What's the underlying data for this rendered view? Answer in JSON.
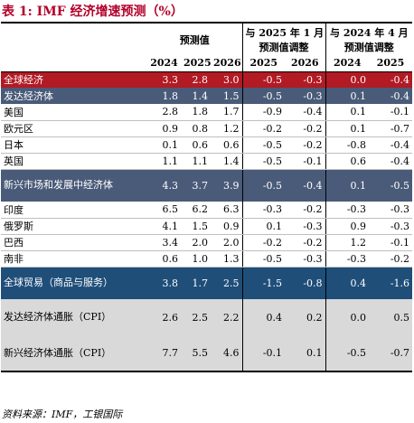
{
  "title": "表 1: IMF 经济增速预测（%）",
  "header": {
    "group1": "预测值",
    "group2_line1": "与 2025 年 1 月",
    "group2_line2": "预测值调整",
    "group3_line1": "与 2024 年 4 月",
    "group3_line2": "预测值调整",
    "years": [
      "2024",
      "2025",
      "2026",
      "2025",
      "2026",
      "2024",
      "2025"
    ]
  },
  "rows": [
    {
      "label": "全球经济",
      "values": [
        "3.3",
        "2.8",
        "3.0",
        "-0.5",
        "-0.3",
        "0.0",
        "-0.4"
      ]
    },
    {
      "label": "发达经济体",
      "values": [
        "1.8",
        "1.4",
        "1.5",
        "-0.5",
        "-0.3",
        "0.1",
        "-0.4"
      ]
    },
    {
      "label": "美国",
      "values": [
        "2.8",
        "1.8",
        "1.7",
        "-0.9",
        "-0.4",
        "0.1",
        "-0.1"
      ]
    },
    {
      "label": "欧元区",
      "values": [
        "0.9",
        "0.8",
        "1.2",
        "-0.2",
        "-0.2",
        "0.1",
        "-0.7"
      ]
    },
    {
      "label": "日本",
      "values": [
        "0.1",
        "0.6",
        "0.6",
        "-0.5",
        "-0.2",
        "-0.8",
        "-0.4"
      ]
    },
    {
      "label": "英国",
      "values": [
        "1.1",
        "1.1",
        "1.4",
        "-0.5",
        "-0.1",
        "0.6",
        "-0.4"
      ]
    },
    {
      "label": "新兴市场和发展中经济体",
      "values": [
        "4.3",
        "3.7",
        "3.9",
        "-0.5",
        "-0.4",
        "0.1",
        "-0.5"
      ]
    },
    {
      "label": "印度",
      "values": [
        "6.5",
        "6.2",
        "6.3",
        "-0.3",
        "-0.2",
        "-0.3",
        "-0.3"
      ]
    },
    {
      "label": "俄罗斯",
      "values": [
        "4.1",
        "1.5",
        "0.9",
        "0.1",
        "-0.3",
        "0.9",
        "-0.3"
      ]
    },
    {
      "label": "巴西",
      "values": [
        "3.4",
        "2.0",
        "2.0",
        "-0.2",
        "-0.2",
        "1.2",
        "-0.1"
      ]
    },
    {
      "label": "南非",
      "values": [
        "0.6",
        "1.0",
        "1.3",
        "-0.5",
        "-0.3",
        "-0.3",
        "-0.2"
      ]
    },
    {
      "label": "全球贸易（商品与服务）",
      "values": [
        "3.8",
        "1.7",
        "2.5",
        "-1.5",
        "-0.8",
        "0.4",
        "-1.6"
      ]
    },
    {
      "label": "发达经济体通胀（CPI）",
      "values": [
        "2.6",
        "2.5",
        "2.2",
        "0.4",
        "0.2",
        "0.0",
        "0.5"
      ]
    },
    {
      "label": "新兴经济体通胀（CPI）",
      "values": [
        "7.7",
        "5.5",
        "4.6",
        "-0.1",
        "0.1",
        "-0.5",
        "-0.7"
      ]
    }
  ],
  "source": "资料来源：IMF，工银国际",
  "colors": {
    "title": "#b3002a",
    "red_row": "#b21a24",
    "dark_row": "#4a5b79",
    "blue_row": "#1f4e79",
    "grey_row": "#d9d9d9"
  }
}
